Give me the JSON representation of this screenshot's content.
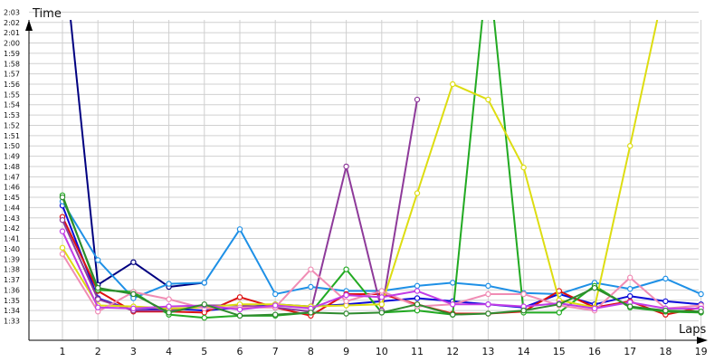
{
  "chart_data": {
    "type": "line",
    "title": "",
    "xlabel": "Laps",
    "ylabel": "Time",
    "y_unit": "m:ss",
    "x": [
      1,
      2,
      3,
      4,
      5,
      6,
      7,
      8,
      9,
      10,
      11,
      12,
      13,
      14,
      15,
      16,
      17,
      18,
      19
    ],
    "x_tick_labels": [
      "1",
      "2",
      "3",
      "4",
      "5",
      "6",
      "7",
      "8",
      "9",
      "10",
      "11",
      "12",
      "13",
      "14",
      "15",
      "16",
      "17",
      "18",
      "19"
    ],
    "y_tick_labels": [
      "1:33",
      "1:34",
      "1:35",
      "1:36",
      "1:37",
      "1:38",
      "1:39",
      "1:40",
      "1:41",
      "1:42",
      "1:43",
      "1:44",
      "1:45",
      "1:46",
      "1:47",
      "1:48",
      "1:49",
      "1:50",
      "1:51",
      "1:52",
      "1:53",
      "1:54",
      "1:55",
      "1:56",
      "1:57",
      "1:58",
      "1:59",
      "2:00",
      "2:01",
      "2:02",
      "2:03"
    ],
    "ylim": [
      "1:32",
      "2:04"
    ],
    "grid": true,
    "series": [
      {
        "color": "#000080",
        "values": [
          "2:10",
          "1:36.5",
          "1:38.7",
          "1:36.3",
          "1:36.7",
          null,
          null,
          null,
          null,
          null,
          null,
          null,
          null,
          null,
          null,
          null,
          null,
          null,
          null
        ]
      },
      {
        "color": "#0b0bd8",
        "values": [
          "1:44.2",
          "1:35.2",
          "1:34.0",
          "1:34.2",
          "1:34.0",
          "1:34.3",
          "1:34.6",
          "1:34.4",
          "1:34.6",
          "1:34.9",
          "1:35.2",
          "1:34.9",
          "1:34.6",
          "1:34.3",
          "1:35.6",
          "1:34.6",
          "1:35.4",
          "1:34.9",
          "1:34.6"
        ]
      },
      {
        "color": "#1e90e6",
        "values": [
          "1:44.6",
          "1:38.9",
          "1:35.2",
          "1:36.6",
          "1:36.7",
          "1:41.9",
          "1:35.6",
          "1:36.3",
          "1:35.9",
          "1:35.9",
          "1:36.4",
          "1:36.7",
          "1:36.4",
          "1:35.7",
          "1:35.6",
          "1:36.7",
          "1:36.1",
          "1:37.1",
          "1:35.6"
        ]
      },
      {
        "color": "#dd1111",
        "values": [
          "1:43.1",
          "1:35.9",
          "1:33.9",
          "1:33.9",
          "1:33.8",
          "1:35.3",
          "1:34.3",
          "1:33.5",
          "1:35.6",
          "1:35.6",
          "1:34.6",
          "1:33.7",
          "1:33.7",
          "1:33.9",
          "1:35.9",
          "1:34.3",
          "1:34.9",
          "1:33.6",
          "1:34.3"
        ]
      },
      {
        "color": "#22aa22",
        "values": [
          "1:45.2",
          "1:36.0",
          "1:35.8",
          "1:33.6",
          "1:33.3",
          "1:33.5",
          "1:33.5",
          "1:33.8",
          "1:38.0",
          "1:33.8",
          "1:34.0",
          "1:33.6",
          "2:08",
          "1:33.8",
          "1:33.8",
          "1:36.4",
          "1:34.3",
          "1:33.9",
          "1:33.8"
        ]
      },
      {
        "color": "#8e3a9a",
        "values": [
          "1:42.8",
          "1:35.1",
          "1:34.0",
          "1:34.0",
          "1:34.5",
          "1:34.5",
          "1:34.3",
          "1:33.9",
          "1:48.0",
          "1:34.0",
          "1:54.5",
          null,
          null,
          null,
          null,
          null,
          null,
          null,
          null
        ]
      },
      {
        "color": "#dddd11",
        "values": [
          "1:40.1",
          "1:34.5",
          "1:34.4",
          "1:34.2",
          "1:34.3",
          "1:34.6",
          "1:34.6",
          "1:34.4",
          "1:34.5",
          "1:34.6",
          "1:45.4",
          "1:56.0",
          "1:54.5",
          "1:47.9",
          "1:35.0",
          "1:34.3",
          "1:50.0",
          "2:06",
          null
        ]
      },
      {
        "color": "#f08cb4",
        "values": [
          "1:39.5",
          "1:33.9",
          "1:35.8",
          "1:35.1",
          "1:34.2",
          "1:34.3",
          "1:34.3",
          "1:38.0",
          "1:34.9",
          "1:35.9",
          "1:34.4",
          "1:34.6",
          "1:35.6",
          "1:35.6",
          "1:34.5",
          "1:34.0",
          "1:37.2",
          "1:34.2",
          "1:34.5"
        ]
      },
      {
        "color": "#c23ce6",
        "values": [
          "1:41.7",
          "1:34.3",
          "1:34.2",
          "1:34.4",
          "1:34.5",
          "1:34.1",
          "1:34.5",
          "1:34.2",
          "1:35.5",
          "1:35.3",
          "1:35.9",
          "1:34.6",
          "1:34.6",
          "1:34.4",
          "1:34.7",
          "1:34.2",
          "1:34.8",
          "1:34.2",
          "1:34.2"
        ]
      },
      {
        "color": "#2e8b2e",
        "values": [
          "1:45.0",
          "1:36.2",
          "1:35.6",
          "1:33.8",
          "1:34.6",
          "1:33.5",
          "1:33.6",
          "1:33.8",
          "1:33.7",
          "1:33.8",
          "1:34.6",
          "1:33.6",
          "1:33.7",
          "1:34.0",
          "1:34.6",
          "1:36.2",
          "1:34.4",
          "1:34.0",
          "1:33.9"
        ]
      }
    ]
  }
}
